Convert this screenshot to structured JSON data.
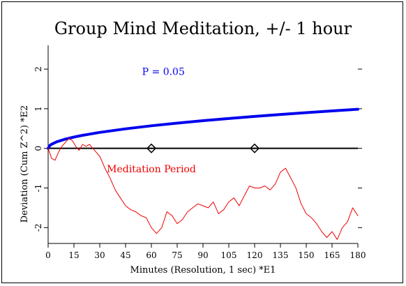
{
  "chart_data": {
    "type": "line",
    "title": "Group Mind Meditation, +/- 1 hour",
    "xlabel": "Minutes (Resolution, 1 sec)   *E1",
    "ylabel": "Deviation (Cum Z^2)   *E2",
    "xlim": [
      0,
      180
    ],
    "ylim": [
      -2.4,
      2.6
    ],
    "xticks": [
      0,
      15,
      30,
      45,
      60,
      75,
      90,
      105,
      120,
      135,
      150,
      165,
      180
    ],
    "yticks": [
      -2,
      -1,
      0,
      1,
      2
    ],
    "grid": false,
    "colors": {
      "p_curve": "#0000ee",
      "deviation": "#ee0000",
      "axis": "#000000"
    },
    "series": [
      {
        "name": "P = 0.05",
        "label_at": {
          "x": 67,
          "y": 1.85
        },
        "formula": "1.645 * sqrt(2 * x / 10) / 10",
        "x": [
          0,
          1,
          2,
          5,
          10,
          15,
          20,
          30,
          45,
          60,
          75,
          90,
          105,
          120,
          135,
          150,
          165,
          180
        ],
        "values": [
          0,
          0.074,
          0.104,
          0.165,
          0.233,
          0.285,
          0.329,
          0.403,
          0.493,
          0.57,
          0.637,
          0.698,
          0.754,
          0.806,
          0.855,
          0.901,
          0.945,
          0.987
        ]
      },
      {
        "name": "Meditation Period",
        "label_at": {
          "x": 60,
          "y": -0.6
        },
        "x": [
          0,
          2,
          4,
          6,
          8,
          10,
          12,
          14,
          16,
          18,
          20,
          22,
          24,
          26,
          28,
          30,
          33,
          36,
          39,
          42,
          45,
          48,
          51,
          54,
          57,
          60,
          63,
          66,
          69,
          72,
          75,
          78,
          81,
          84,
          87,
          90,
          93,
          96,
          99,
          102,
          105,
          108,
          111,
          114,
          117,
          120,
          123,
          126,
          129,
          132,
          135,
          138,
          141,
          144,
          147,
          150,
          153,
          156,
          159,
          162,
          165,
          168,
          171,
          174,
          177,
          180
        ],
        "values": [
          0,
          -0.25,
          -0.3,
          -0.1,
          0.05,
          0.15,
          0.25,
          0.2,
          0.05,
          -0.05,
          0.1,
          0.05,
          0.1,
          0.0,
          -0.1,
          -0.2,
          -0.5,
          -0.75,
          -1.05,
          -1.25,
          -1.45,
          -1.55,
          -1.6,
          -1.7,
          -1.75,
          -2.0,
          -2.15,
          -2.0,
          -1.6,
          -1.7,
          -1.9,
          -1.8,
          -1.6,
          -1.5,
          -1.4,
          -1.45,
          -1.5,
          -1.35,
          -1.65,
          -1.55,
          -1.35,
          -1.25,
          -1.45,
          -1.2,
          -0.95,
          -1.0,
          -1.0,
          -0.95,
          -1.05,
          -0.9,
          -0.6,
          -0.5,
          -0.75,
          -1.0,
          -1.4,
          -1.65,
          -1.75,
          -1.9,
          -2.1,
          -2.25,
          -2.1,
          -2.3,
          -2.0,
          -1.85,
          -1.5,
          -1.7
        ]
      }
    ],
    "markers": [
      {
        "type": "diamond",
        "x": 60,
        "y": 0
      },
      {
        "type": "diamond",
        "x": 120,
        "y": 0
      }
    ]
  }
}
